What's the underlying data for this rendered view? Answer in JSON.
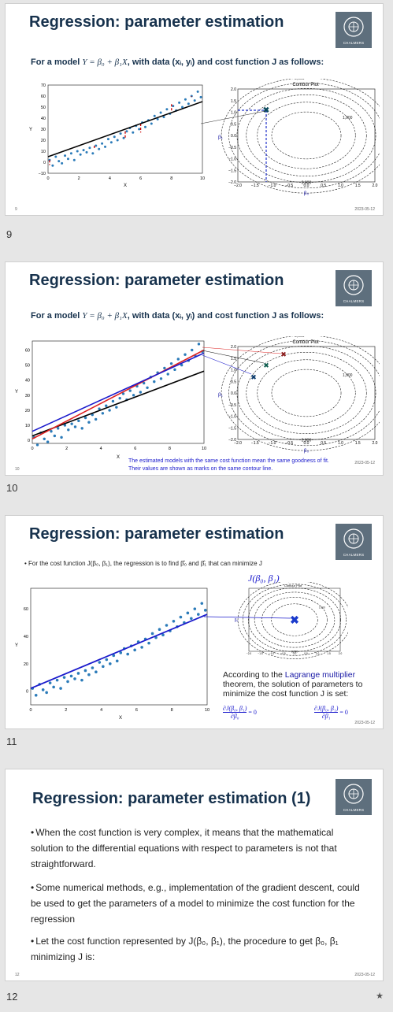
{
  "slides": [
    {
      "number": "9",
      "footer_num": "9",
      "date": "2023-05-12",
      "title": "Regression: parameter estimation",
      "subtitle_pre": "For a model ",
      "subtitle_model": "Y = β₀ + β₁X",
      "subtitle_post": ", with data (xᵢ, yᵢ) and cost function J as follows:"
    },
    {
      "number": "10",
      "footer_num": "10",
      "date": "2023-05-12",
      "title": "Regression: parameter estimation",
      "subtitle_pre": "For a model ",
      "subtitle_model": "Y = β₀ + β₁X",
      "subtitle_post": ", with data (xᵢ, yᵢ) and cost function J as follows:",
      "note_line1": "The estimated models with the same cost function mean the same goodness of fit.",
      "note_line2": "Their values are shown as marks on the same contour line."
    },
    {
      "number": "11",
      "date": "2023-05-12",
      "title": "Regression: parameter estimation",
      "bullet": "For the cost function J(β₀, β₁), the regression is to find β̂₀ and β̂₁ that can minimize J",
      "cost_label": "J(β₀, β₁)",
      "lagrange_pre": "According to the ",
      "lagrange_link": "Lagrange multiplier",
      "lagrange_post": " theorem, the solution of parameters to minimize the cost function J is set:",
      "eq1_num": "∂J(β₀, β₁)",
      "eq1_den": "∂β₀",
      "eq1_rhs": "= 0",
      "eq2_num": "∂J(β₀, β₁)",
      "eq2_den": "∂β₁",
      "eq2_rhs": "= 0"
    },
    {
      "number": "12",
      "footer_num": "12",
      "date": "2023-05-12",
      "title": "Regression: parameter estimation (1)",
      "bullets": [
        "When the cost function is very complex, it means that the mathematical solution to the differential equations with respect to parameters is not that straightforward.",
        "Some numerical methods, e.g., implementation of the gradient descent, could be used to get the parameters of a model to minimize the cost function for the regression",
        "Let the cost function represented by J(β₀, β₁), the procedure to get β₀, β₁ minimizing J is:"
      ]
    }
  ],
  "logo_text": "CHALMERS",
  "star_icon": "★",
  "scatter_axis": {
    "x_ticks": [
      "0",
      "2",
      "4",
      "6",
      "8",
      "10"
    ],
    "y_ticks_s9": [
      "−10",
      "0",
      "10",
      "20",
      "30",
      "40",
      "50",
      "60",
      "70"
    ],
    "y_ticks": [
      "0",
      "10",
      "20",
      "30",
      "40",
      "50",
      "60"
    ],
    "y_ticks_s11": [
      "0",
      "20",
      "40",
      "60"
    ],
    "xlabel": "X",
    "ylabel": "Y"
  },
  "contour": {
    "title": "Contour Plot",
    "xlabel": "β₀",
    "ylabel": "β₁",
    "x_ticks": [
      "−2.0",
      "−1.5",
      "−1.0",
      "−0.5",
      "0.0",
      "0.5",
      "1.0",
      "1.5",
      "2.0"
    ],
    "y_ticks": [
      "2.0",
      "1.5",
      "1.0",
      "0.5",
      "0.0",
      "−0.5",
      "−1.0",
      "−1.5",
      "−2.0"
    ],
    "level_labels": [
      "1,000",
      "2,000",
      "3,000",
      "4,000",
      "5,000",
      "6,000"
    ]
  },
  "chart_data": [
    {
      "type": "scatter",
      "title": "",
      "xlabel": "X",
      "ylabel": "Y",
      "xlim": [
        0,
        10
      ],
      "ylim": [
        -10,
        70
      ],
      "points": [
        [
          0.1,
          2
        ],
        [
          0.3,
          -3
        ],
        [
          0.5,
          5
        ],
        [
          0.7,
          1
        ],
        [
          0.9,
          -1
        ],
        [
          1.1,
          6
        ],
        [
          1.3,
          3
        ],
        [
          1.5,
          8
        ],
        [
          1.7,
          2
        ],
        [
          1.9,
          10
        ],
        [
          2.1,
          7
        ],
        [
          2.3,
          11
        ],
        [
          2.5,
          9
        ],
        [
          2.7,
          13
        ],
        [
          2.9,
          8
        ],
        [
          3.1,
          15
        ],
        [
          3.3,
          12
        ],
        [
          3.5,
          17
        ],
        [
          3.7,
          14
        ],
        [
          3.9,
          21
        ],
        [
          4.1,
          18
        ],
        [
          4.3,
          23
        ],
        [
          4.5,
          20
        ],
        [
          4.7,
          26
        ],
        [
          4.9,
          22
        ],
        [
          5.1,
          28
        ],
        [
          5.3,
          31
        ],
        [
          5.5,
          27
        ],
        [
          5.7,
          33
        ],
        [
          5.9,
          30
        ],
        [
          6.1,
          36
        ],
        [
          6.3,
          32
        ],
        [
          6.5,
          38
        ],
        [
          6.7,
          35
        ],
        [
          6.9,
          42
        ],
        [
          7.1,
          39
        ],
        [
          7.3,
          45
        ],
        [
          7.5,
          41
        ],
        [
          7.7,
          48
        ],
        [
          7.9,
          44
        ],
        [
          8.1,
          51
        ],
        [
          8.3,
          47
        ],
        [
          8.5,
          54
        ],
        [
          8.7,
          50
        ],
        [
          8.9,
          57
        ],
        [
          9.1,
          53
        ],
        [
          9.3,
          60
        ],
        [
          9.5,
          56
        ],
        [
          9.7,
          64
        ],
        [
          9.9,
          59
        ]
      ]
    },
    {
      "type": "contour",
      "title": "Contour Plot",
      "xlabel": "β₀",
      "ylabel": "β₁",
      "xlim": [
        -2,
        2
      ],
      "ylim": [
        -2,
        2
      ],
      "levels": [
        1000,
        2000,
        3000,
        4000,
        5000,
        6000
      ]
    }
  ]
}
